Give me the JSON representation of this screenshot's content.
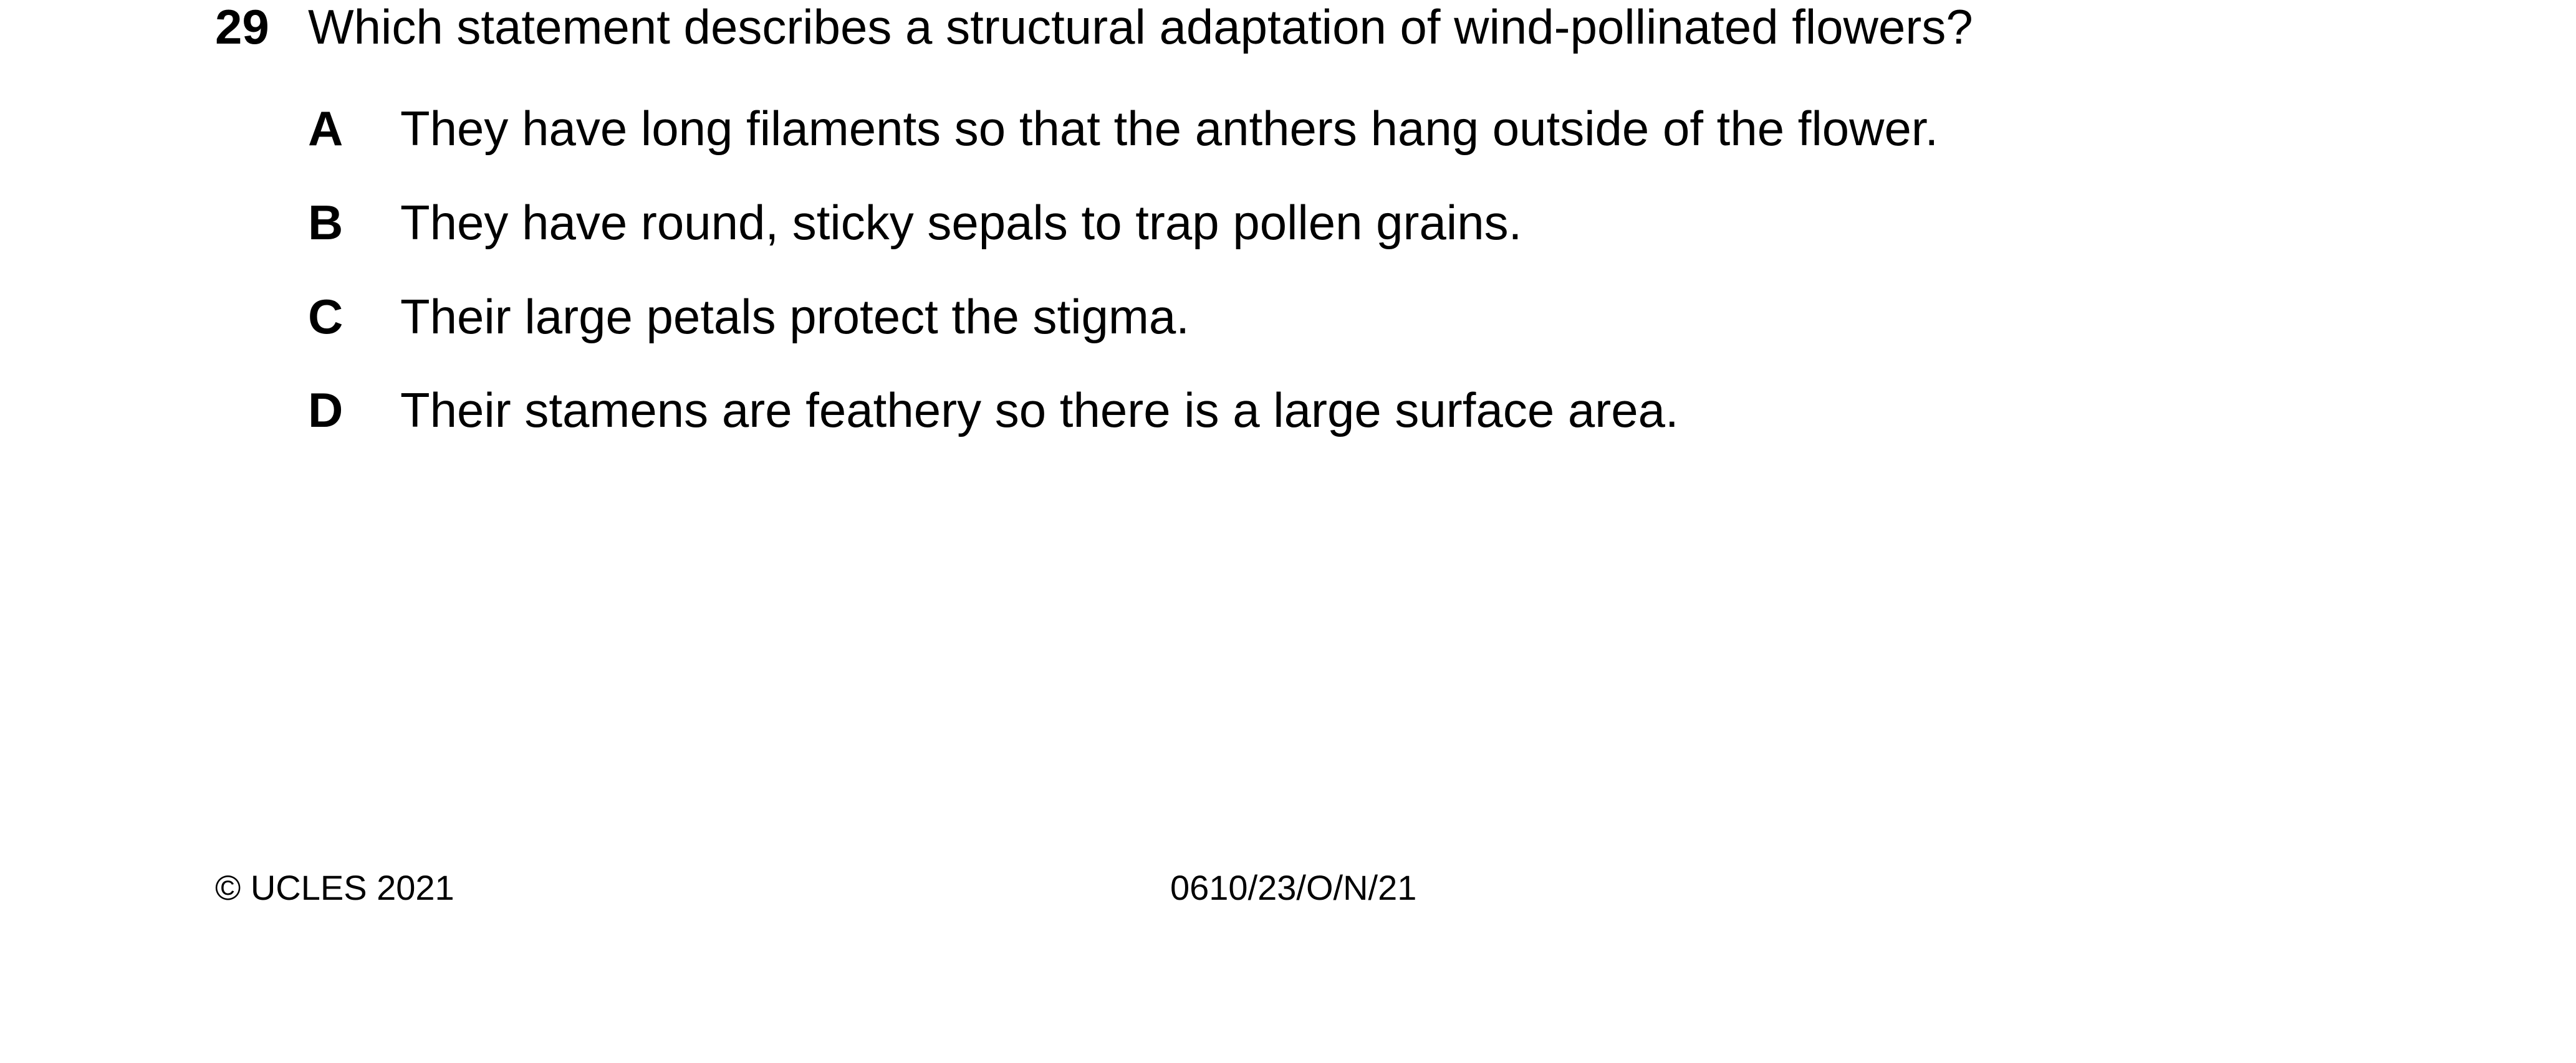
{
  "question": {
    "number": "29",
    "stem": "Which statement describes a structural adaptation of wind-pollinated flowers?",
    "options": [
      {
        "letter": "A",
        "text": "They have long filaments so that the anthers hang outside of the flower."
      },
      {
        "letter": "B",
        "text": "They have round, sticky sepals to trap pollen grains."
      },
      {
        "letter": "C",
        "text": "Their large petals protect the stigma."
      },
      {
        "letter": "D",
        "text": "Their stamens are feathery so there is a large surface area."
      }
    ]
  },
  "footer": {
    "copyright": "© UCLES 2021",
    "paper_code": "0610/23/O/N/21"
  }
}
